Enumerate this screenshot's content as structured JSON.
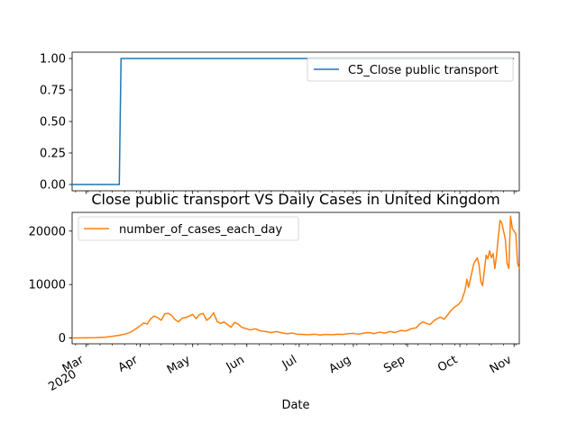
{
  "chart_data": [
    {
      "type": "line",
      "title": "",
      "xlabel": "",
      "ylabel": "",
      "ylim": [
        -0.05,
        1.05
      ],
      "yticks": [
        "0.00",
        "0.25",
        "0.50",
        "0.75",
        "1.00"
      ],
      "legend": "top-right",
      "series": [
        {
          "name": "C5_Close public transport",
          "color": "#1f77b4",
          "points": [
            [
              "2020-02-22",
              0
            ],
            [
              "2020-03-20",
              0
            ],
            [
              "2020-03-21",
              1
            ],
            [
              "2020-11-01",
              1
            ]
          ]
        }
      ]
    },
    {
      "type": "line",
      "title": "Close public transport VS Daily Cases in United Kingdom",
      "xlabel": "Date",
      "ylabel": "",
      "ylim": [
        -1100,
        23500
      ],
      "yticks": [
        "0",
        "10000",
        "20000"
      ],
      "xticks": [
        {
          "date": "2020-03-01",
          "label": "Mar",
          "sublabel": "2020"
        },
        {
          "date": "2020-04-01",
          "label": "Apr"
        },
        {
          "date": "2020-05-01",
          "label": "May"
        },
        {
          "date": "2020-06-01",
          "label": "Jun"
        },
        {
          "date": "2020-07-01",
          "label": "Jul"
        },
        {
          "date": "2020-08-01",
          "label": "Aug"
        },
        {
          "date": "2020-09-01",
          "label": "Sep"
        },
        {
          "date": "2020-10-01",
          "label": "Oct"
        },
        {
          "date": "2020-11-01",
          "label": "Nov"
        }
      ],
      "legend": "top-left",
      "series": [
        {
          "name": "number_of_cases_each_day",
          "color": "#ff7f0e",
          "points": [
            [
              "2020-02-22",
              0
            ],
            [
              "2020-03-01",
              10
            ],
            [
              "2020-03-07",
              50
            ],
            [
              "2020-03-12",
              150
            ],
            [
              "2020-03-16",
              300
            ],
            [
              "2020-03-20",
              500
            ],
            [
              "2020-03-23",
              700
            ],
            [
              "2020-03-26",
              1000
            ],
            [
              "2020-03-29",
              1600
            ],
            [
              "2020-04-01",
              2300
            ],
            [
              "2020-04-03",
              2800
            ],
            [
              "2020-04-05",
              2600
            ],
            [
              "2020-04-07",
              3600
            ],
            [
              "2020-04-09",
              4100
            ],
            [
              "2020-04-11",
              3800
            ],
            [
              "2020-04-13",
              3300
            ],
            [
              "2020-04-15",
              4500
            ],
            [
              "2020-04-17",
              4600
            ],
            [
              "2020-04-19",
              4200
            ],
            [
              "2020-04-21",
              3400
            ],
            [
              "2020-04-23",
              3000
            ],
            [
              "2020-04-25",
              3700
            ],
            [
              "2020-04-27",
              3800
            ],
            [
              "2020-04-29",
              4100
            ],
            [
              "2020-05-01",
              4400
            ],
            [
              "2020-05-03",
              3600
            ],
            [
              "2020-05-05",
              4400
            ],
            [
              "2020-05-07",
              4600
            ],
            [
              "2020-05-09",
              3300
            ],
            [
              "2020-05-11",
              3800
            ],
            [
              "2020-05-13",
              4700
            ],
            [
              "2020-05-15",
              3100
            ],
            [
              "2020-05-17",
              2700
            ],
            [
              "2020-05-19",
              3000
            ],
            [
              "2020-05-21",
              2500
            ],
            [
              "2020-05-23",
              2000
            ],
            [
              "2020-05-25",
              2900
            ],
            [
              "2020-05-27",
              2600
            ],
            [
              "2020-05-29",
              2000
            ],
            [
              "2020-05-31",
              1800
            ],
            [
              "2020-06-03",
              1500
            ],
            [
              "2020-06-06",
              1700
            ],
            [
              "2020-06-09",
              1300
            ],
            [
              "2020-06-12",
              1200
            ],
            [
              "2020-06-15",
              1000
            ],
            [
              "2020-06-18",
              1200
            ],
            [
              "2020-06-21",
              950
            ],
            [
              "2020-06-24",
              800
            ],
            [
              "2020-06-27",
              900
            ],
            [
              "2020-06-30",
              700
            ],
            [
              "2020-07-03",
              650
            ],
            [
              "2020-07-06",
              600
            ],
            [
              "2020-07-10",
              700
            ],
            [
              "2020-07-13",
              550
            ],
            [
              "2020-07-16",
              650
            ],
            [
              "2020-07-20",
              600
            ],
            [
              "2020-07-23",
              700
            ],
            [
              "2020-07-26",
              650
            ],
            [
              "2020-07-29",
              800
            ],
            [
              "2020-08-01",
              850
            ],
            [
              "2020-08-04",
              700
            ],
            [
              "2020-08-07",
              900
            ],
            [
              "2020-08-10",
              1000
            ],
            [
              "2020-08-13",
              800
            ],
            [
              "2020-08-16",
              1100
            ],
            [
              "2020-08-19",
              900
            ],
            [
              "2020-08-22",
              1200
            ],
            [
              "2020-08-25",
              1000
            ],
            [
              "2020-08-28",
              1400
            ],
            [
              "2020-08-31",
              1300
            ],
            [
              "2020-09-03",
              1700
            ],
            [
              "2020-09-06",
              1900
            ],
            [
              "2020-09-08",
              2600
            ],
            [
              "2020-09-10",
              3000
            ],
            [
              "2020-09-12",
              2700
            ],
            [
              "2020-09-14",
              2500
            ],
            [
              "2020-09-16",
              3200
            ],
            [
              "2020-09-18",
              3600
            ],
            [
              "2020-09-20",
              3900
            ],
            [
              "2020-09-22",
              3500
            ],
            [
              "2020-09-24",
              4300
            ],
            [
              "2020-09-26",
              5200
            ],
            [
              "2020-09-28",
              5800
            ],
            [
              "2020-09-30",
              6200
            ],
            [
              "2020-10-02",
              7000
            ],
            [
              "2020-10-04",
              9000
            ],
            [
              "2020-10-05",
              11000
            ],
            [
              "2020-10-06",
              9500
            ],
            [
              "2020-10-08",
              12500
            ],
            [
              "2020-10-09",
              14000
            ],
            [
              "2020-10-11",
              15000
            ],
            [
              "2020-10-12",
              13500
            ],
            [
              "2020-10-13",
              10500
            ],
            [
              "2020-10-14",
              9800
            ],
            [
              "2020-10-16",
              15500
            ],
            [
              "2020-10-17",
              14800
            ],
            [
              "2020-10-18",
              16300
            ],
            [
              "2020-10-19",
              15000
            ],
            [
              "2020-10-20",
              15800
            ],
            [
              "2020-10-21",
              13000
            ],
            [
              "2020-10-22",
              15500
            ],
            [
              "2020-10-23",
              19000
            ],
            [
              "2020-10-24",
              22000
            ],
            [
              "2020-10-25",
              21500
            ],
            [
              "2020-10-26",
              20000
            ],
            [
              "2020-10-27",
              18500
            ],
            [
              "2020-10-28",
              14000
            ],
            [
              "2020-10-29",
              13000
            ],
            [
              "2020-10-30",
              22800
            ],
            [
              "2020-10-31",
              20500
            ],
            [
              "2020-11-01",
              20000
            ],
            [
              "2020-11-02",
              19500
            ],
            [
              "2020-11-03",
              14000
            ],
            [
              "2020-11-04",
              13000
            ]
          ]
        }
      ]
    }
  ]
}
